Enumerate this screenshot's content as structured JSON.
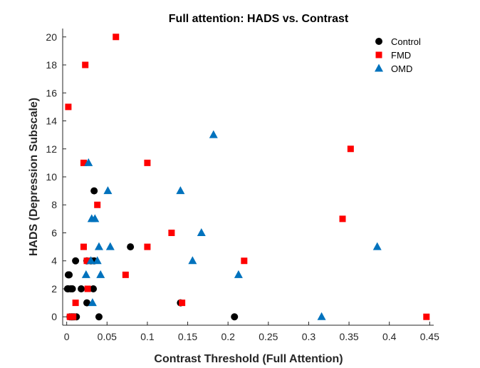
{
  "chart_data": {
    "type": "scatter",
    "title": "Full attention: HADS vs. Contrast",
    "xlabel": "Contrast Threshold (Full Attention)",
    "ylabel": "HADS (Depression Subscale)",
    "xlim": [
      -0.005,
      0.455
    ],
    "ylim": [
      -0.6,
      20.6
    ],
    "xticks": [
      0,
      0.05,
      0.1,
      0.15,
      0.2,
      0.25,
      0.3,
      0.35,
      0.4,
      0.45
    ],
    "xtick_labels": [
      "0",
      "0.05",
      "0.1",
      "0.15",
      "0.2",
      "0.25",
      "0.3",
      "0.35",
      "0.4",
      "0.45"
    ],
    "yticks": [
      0,
      2,
      4,
      6,
      8,
      10,
      12,
      14,
      16,
      18,
      20
    ],
    "ytick_labels": [
      "0",
      "2",
      "4",
      "6",
      "8",
      "10",
      "12",
      "14",
      "16",
      "18",
      "20"
    ],
    "legend_position": "top-right",
    "grid": false,
    "series": [
      {
        "name": "Control",
        "marker": "circle",
        "color": "#000000",
        "points": [
          [
            0.002,
            3
          ],
          [
            0.003,
            3
          ],
          [
            0.001,
            2
          ],
          [
            0.002,
            2
          ],
          [
            0.005,
            2
          ],
          [
            0.007,
            2
          ],
          [
            0.004,
            0
          ],
          [
            0.006,
            0
          ],
          [
            0.007,
            0
          ],
          [
            0.009,
            0
          ],
          [
            0.012,
            0
          ],
          [
            0.011,
            4
          ],
          [
            0.018,
            2
          ],
          [
            0.025,
            1
          ],
          [
            0.025,
            4
          ],
          [
            0.03,
            4
          ],
          [
            0.033,
            2
          ],
          [
            0.034,
            4
          ],
          [
            0.034,
            9
          ],
          [
            0.04,
            0
          ],
          [
            0.079,
            5
          ],
          [
            0.141,
            1
          ],
          [
            0.208,
            0
          ]
        ]
      },
      {
        "name": "FMD",
        "marker": "square",
        "color": "#FF0000",
        "points": [
          [
            0.002,
            15
          ],
          [
            0.004,
            0
          ],
          [
            0.008,
            0
          ],
          [
            0.011,
            1
          ],
          [
            0.021,
            11
          ],
          [
            0.021,
            5
          ],
          [
            0.023,
            18
          ],
          [
            0.025,
            4
          ],
          [
            0.026,
            2
          ],
          [
            0.038,
            8
          ],
          [
            0.061,
            20
          ],
          [
            0.073,
            3
          ],
          [
            0.1,
            11
          ],
          [
            0.1,
            5
          ],
          [
            0.13,
            6
          ],
          [
            0.143,
            1
          ],
          [
            0.22,
            4
          ],
          [
            0.342,
            7
          ],
          [
            0.352,
            12
          ],
          [
            0.446,
            0
          ]
        ]
      },
      {
        "name": "OMD",
        "marker": "triangle",
        "color": "#0072BD",
        "points": [
          [
            0.024,
            3
          ],
          [
            0.027,
            11
          ],
          [
            0.03,
            4
          ],
          [
            0.031,
            7
          ],
          [
            0.032,
            1
          ],
          [
            0.035,
            7
          ],
          [
            0.038,
            4
          ],
          [
            0.04,
            5
          ],
          [
            0.042,
            3
          ],
          [
            0.051,
            9
          ],
          [
            0.054,
            5
          ],
          [
            0.141,
            9
          ],
          [
            0.156,
            4
          ],
          [
            0.167,
            6
          ],
          [
            0.182,
            13
          ],
          [
            0.213,
            3
          ],
          [
            0.316,
            0
          ],
          [
            0.385,
            5
          ]
        ]
      }
    ]
  }
}
